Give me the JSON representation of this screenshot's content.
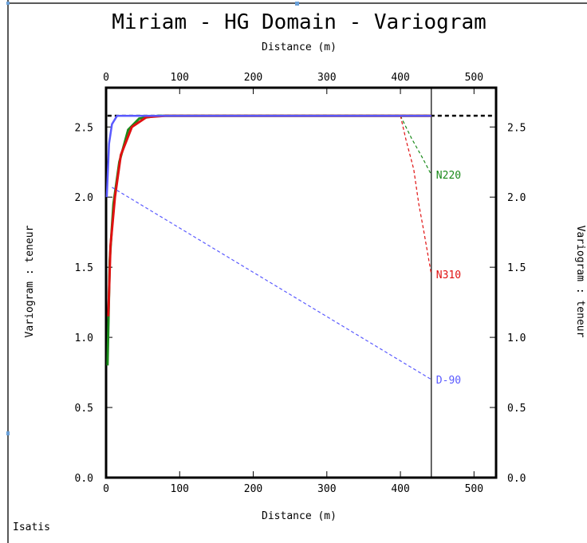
{
  "chart_data": {
    "type": "line",
    "title": "Miriam - HG Domain - Variogram",
    "xlabel_top": "Distance (m)",
    "xlabel_bottom": "Distance (m)",
    "ylabel_left": "Variogram : teneur",
    "ylabel_right": "Variogram : teneur",
    "xlim": [
      0,
      530
    ],
    "ylim": [
      0,
      2.78
    ],
    "xticks": [
      "0",
      "100",
      "200",
      "300",
      "400",
      "500"
    ],
    "yticks": [
      "0.0",
      "0.5",
      "1.0",
      "1.5",
      "2.0",
      "2.5"
    ],
    "sill": 2.58,
    "vertical_line_x": 442,
    "series": [
      {
        "name": "N220",
        "color": "#1a8a1a",
        "model": [
          [
            2,
            0.8
          ],
          [
            5,
            1.55
          ],
          [
            10,
            1.95
          ],
          [
            18,
            2.25
          ],
          [
            30,
            2.48
          ],
          [
            45,
            2.56
          ],
          [
            70,
            2.58
          ],
          [
            442,
            2.58
          ]
        ],
        "experimental": [
          [
            400,
            2.58
          ],
          [
            415,
            2.42
          ],
          [
            430,
            2.28
          ],
          [
            442,
            2.16
          ]
        ]
      },
      {
        "name": "N310",
        "color": "#e01010",
        "model": [
          [
            3,
            1.15
          ],
          [
            6,
            1.65
          ],
          [
            12,
            2.0
          ],
          [
            20,
            2.3
          ],
          [
            35,
            2.5
          ],
          [
            55,
            2.57
          ],
          [
            80,
            2.58
          ],
          [
            442,
            2.58
          ]
        ],
        "experimental": [
          [
            400,
            2.58
          ],
          [
            408,
            2.4
          ],
          [
            418,
            2.2
          ],
          [
            425,
            1.95
          ],
          [
            432,
            1.75
          ],
          [
            442,
            1.45
          ]
        ]
      },
      {
        "name": "D-90",
        "color": "#5a5aff",
        "model": [
          [
            1,
            2.0
          ],
          [
            4,
            2.38
          ],
          [
            8,
            2.52
          ],
          [
            15,
            2.58
          ],
          [
            442,
            2.58
          ]
        ],
        "experimental": [
          [
            8,
            2.07
          ],
          [
            442,
            0.7
          ]
        ]
      }
    ]
  },
  "footer": {
    "label": "Isatis"
  }
}
